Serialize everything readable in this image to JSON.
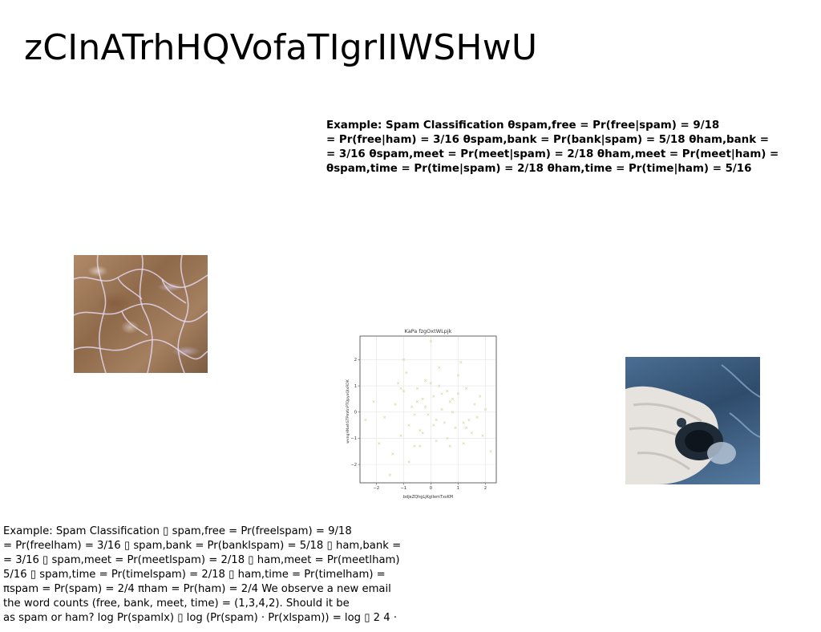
{
  "title": "zCInATrhHQVofaTIgrIIWSHwU",
  "bold_block": {
    "lines": [
      "Example: Spam Classification θspam,free = Pr(free|spam) = 9/18",
      "= Pr(free|ham) = 3/16 θspam,bank = Pr(bank|spam) = 5/18 θham,bank =",
      "= 3/16 θspam,meet = Pr(meet|spam) = 2/18 θham,meet = Pr(meet|ham) =",
      "θspam,time = Pr(time|spam) = 2/18 θham,time = Pr(time|ham) = 5/16"
    ]
  },
  "paragraph": {
    "lines": [
      "Example: Spam Classification ▯ spam,free = Pr(freelspam) = 9/18",
      "= Pr(freelham) = 3/16 ▯ spam,bank = Pr(banklspam) = 5/18 ▯ ham,bank =",
      "= 3/16 ▯ spam,meet = Pr(meetlspam) = 2/18 ▯ ham,meet = Pr(meetlham)",
      "5/16 ▯ spam,time = Pr(timelspam) = 2/18 ▯ ham,time = Pr(timelham) =",
      "πspam = Pr(spam) = 2/4 πham = Pr(ham) = 2/4 We observe a new email",
      "the word counts (free, bank, meet, time) = (1,3,4,2). Should it be",
      "as spam or ham? log Pr(spamlx) ▯ log (Pr(spam) · Pr(xlspam)) = log ▯ 2 4 ·"
    ]
  },
  "images": {
    "texture": "water-caustics-texture",
    "photo": "beach-towel-camera-photo"
  },
  "chart_data": {
    "type": "scatter",
    "title": "KaPa fzgOxtWLpjk",
    "xlabel": "bdJeZQhgLjKgIlemTxsKM",
    "ylabel": "wvngHNwhSTPmKnPTQpyxQlxRDK",
    "xlim": [
      -2.6,
      2.4
    ],
    "ylim": [
      -2.7,
      2.9
    ],
    "xticks": [
      -2,
      -1,
      0,
      1,
      2
    ],
    "yticks": [
      -2,
      -1,
      0,
      1,
      2
    ],
    "xtick_labels": [
      "−2",
      "−1",
      "0",
      "1",
      "2"
    ],
    "ytick_labels": [
      "−2",
      "−1",
      "0",
      "1",
      "2"
    ],
    "grid": true,
    "marker": "x",
    "color": "#d8d8a8",
    "x": [
      -2.4,
      -2.1,
      -1.9,
      -1.7,
      -1.5,
      -1.4,
      -1.3,
      -1.2,
      -1.1,
      -1.0,
      -0.9,
      -0.8,
      -0.7,
      -0.6,
      -0.5,
      -0.4,
      -0.3,
      -0.2,
      -0.1,
      0.0,
      0.1,
      0.2,
      0.3,
      0.4,
      0.5,
      0.6,
      0.7,
      0.8,
      0.9,
      1.0,
      1.1,
      1.2,
      1.3,
      1.4,
      1.5,
      1.6,
      1.7,
      1.8,
      1.9,
      2.0,
      2.2,
      -1.0,
      -0.8,
      -0.5,
      -0.3,
      0.0,
      0.2,
      0.4,
      0.6,
      0.8,
      1.0,
      1.2,
      -0.6,
      -0.2,
      0.1,
      0.3,
      -1.1,
      0.7,
      1.3,
      -0.4
    ],
    "y": [
      -0.3,
      0.4,
      -1.2,
      -0.2,
      -2.4,
      -1.6,
      0.3,
      1.1,
      -0.9,
      0.8,
      1.5,
      -0.5,
      0.2,
      -1.3,
      0.9,
      -0.7,
      0.5,
      1.2,
      -0.1,
      2.7,
      0.6,
      -1.1,
      1.7,
      0.1,
      -0.4,
      0.8,
      -1.3,
      0.5,
      -0.6,
      0.7,
      1.9,
      -0.4,
      0.9,
      -0.3,
      -0.8,
      0.3,
      -0.2,
      0.6,
      -0.9,
      0.1,
      -1.5,
      2.0,
      -1.9,
      0.4,
      -0.8,
      1.1,
      -0.3,
      0.7,
      -1.0,
      0.0,
      1.4,
      -1.2,
      -0.1,
      0.2,
      -0.5,
      1.0,
      0.9,
      0.4,
      -0.6,
      -1.3
    ]
  }
}
